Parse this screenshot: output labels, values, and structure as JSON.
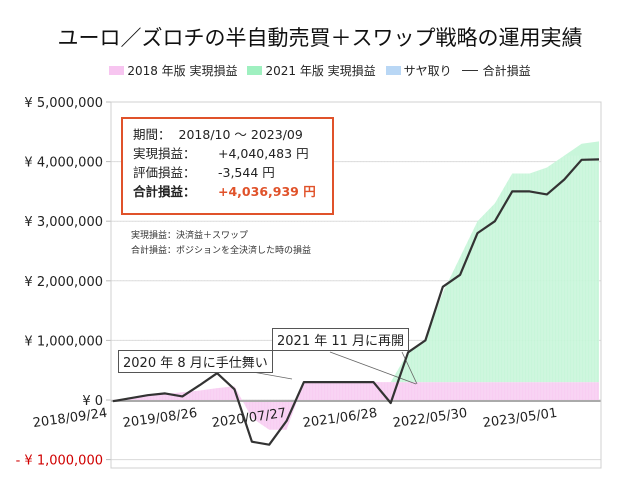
{
  "title": "ユーロ／ズロチの半自動売買＋スワップ戦略の運用実績",
  "legend": [
    {
      "label": "2018 年版 実現損益",
      "color": "#f7c5f0",
      "kind": "area"
    },
    {
      "label": "2021 年版 実現損益",
      "color": "#9ff0c0",
      "kind": "area"
    },
    {
      "label": "サヤ取り",
      "color": "#b9d7f5",
      "kind": "area"
    },
    {
      "label": "合計損益",
      "color": "#333333",
      "kind": "line"
    }
  ],
  "info_box": {
    "period_label": "期間：",
    "period_value": "2018/10 ～ 2023/09",
    "realized_label": "実現損益：",
    "realized_value": "+4,040,483 円",
    "unrealized_label": "評価損益：",
    "unrealized_value": "-3,544 円",
    "total_label": "合計損益：",
    "total_value": "+4,036,939 円"
  },
  "notes": [
    "実現損益：決済益＋スワップ",
    "合計損益：ポジションを全決済した時の損益"
  ],
  "annotations": [
    {
      "text": "2020 年 8 月に手仕舞い"
    },
    {
      "text": "2021 年 11 月に再開"
    }
  ],
  "colors": {
    "accent": "#e0522a",
    "negative_axis": "#d00000",
    "grid": "#d9d9d9",
    "line": "#333333"
  },
  "chart_data": {
    "type": "area",
    "title": "ユーロ／ズロチの半自動売買＋スワップ戦略の運用実績",
    "xlabel": "",
    "ylabel": "",
    "ylim": [
      -1000000,
      5000000
    ],
    "yticks": [
      "¥ 5,000,000",
      "¥ 4,000,000",
      "¥ 3,000,000",
      "¥ 2,000,000",
      "¥ 1,000,000",
      "¥ 0",
      "- ¥ 1,000,000"
    ],
    "ytick_values": [
      5000000,
      4000000,
      3000000,
      2000000,
      1000000,
      0,
      -1000000
    ],
    "xticks": [
      "2018/09/24",
      "2019/08/26",
      "2020/07/27",
      "2021/06/28",
      "2022/05/30",
      "2023/05/01"
    ],
    "grid": true,
    "legend_position": "top",
    "x": [
      "2018/09/24",
      "2018/12",
      "2019/03",
      "2019/06",
      "2019/08/26",
      "2019/11",
      "2020/01",
      "2020/03",
      "2020/05",
      "2020/06",
      "2020/07/27",
      "2020/08",
      "2020/10",
      "2021/01",
      "2021/06/28",
      "2021/10",
      "2021/11",
      "2022/01",
      "2022/03",
      "2022/04",
      "2022/05/30",
      "2022/07",
      "2022/09",
      "2022/11",
      "2023/01",
      "2023/03",
      "2023/05/01",
      "2023/07",
      "2023/09"
    ],
    "series": [
      {
        "name": "2018 年版 実現損益",
        "values": [
          0,
          30000,
          60000,
          100000,
          130000,
          160000,
          200000,
          230000,
          -300000,
          -500000,
          -500000,
          300000,
          300000,
          300000,
          300000,
          300000,
          300000,
          300000,
          300000,
          300000,
          300000,
          300000,
          300000,
          300000,
          300000,
          300000,
          300000,
          300000,
          300000
        ]
      },
      {
        "name": "2021 年版 実現損益",
        "values": [
          0,
          0,
          0,
          0,
          0,
          0,
          0,
          0,
          0,
          0,
          0,
          0,
          0,
          0,
          0,
          0,
          0,
          500000,
          700000,
          1500000,
          2100000,
          2700000,
          3000000,
          3500000,
          3500000,
          3600000,
          3800000,
          4000000,
          4040000
        ]
      },
      {
        "name": "サヤ取り",
        "values": [
          0,
          0,
          0,
          0,
          0,
          0,
          0,
          0,
          0,
          0,
          0,
          0,
          0,
          0,
          0,
          0,
          0,
          0,
          0,
          0,
          0,
          0,
          0,
          0,
          0,
          0,
          0,
          0,
          0
        ]
      },
      {
        "name": "合計損益",
        "values": [
          -20000,
          30000,
          80000,
          110000,
          60000,
          250000,
          450000,
          180000,
          -700000,
          -750000,
          -350000,
          300000,
          300000,
          300000,
          300000,
          300000,
          -50000,
          800000,
          1000000,
          1900000,
          2100000,
          2800000,
          3000000,
          3500000,
          3500000,
          3450000,
          3700000,
          4030000,
          4036939
        ]
      }
    ]
  }
}
